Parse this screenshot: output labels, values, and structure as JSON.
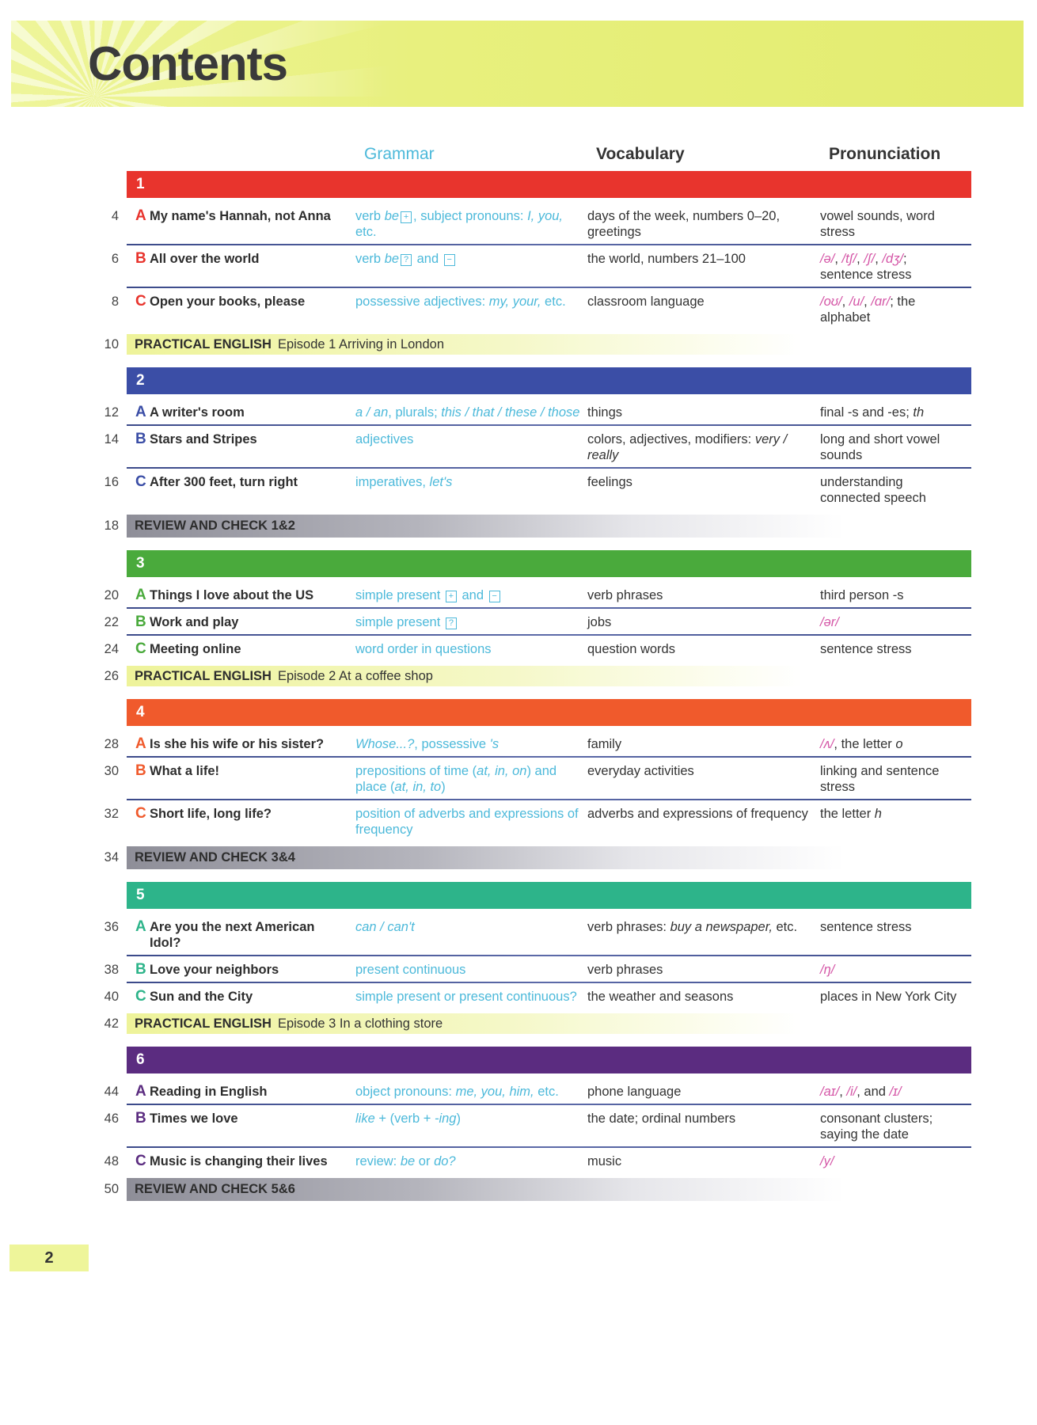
{
  "title": "Contents",
  "columns": {
    "grammar": "Grammar",
    "vocabulary": "Vocabulary",
    "pronunciation": "Pronunciation"
  },
  "colors": {
    "grammar": "#4cb9da",
    "phonetics": "#d455a6",
    "banner": "#e8f07e"
  },
  "sections": [
    {
      "type": "unit",
      "number": "1",
      "color": "#e8342d",
      "lessons": [
        {
          "page": "4",
          "letter": "A",
          "title": "My name's Hannah, not Anna",
          "grammar": [
            "verb ",
            {
              "i": "be"
            },
            {
              "box": "+"
            },
            ", subject pronouns: ",
            {
              "i": "I, you,"
            },
            " etc."
          ],
          "vocabulary": [
            "days of the week, numbers 0–20, greetings"
          ],
          "pronunciation": [
            "vowel sounds, word stress"
          ]
        },
        {
          "page": "6",
          "letter": "B",
          "title": "All over the world",
          "grammar": [
            "verb ",
            {
              "i": "be"
            },
            {
              "box": "?"
            },
            " and ",
            {
              "box": "−"
            }
          ],
          "vocabulary": [
            "the world, numbers 21–100"
          ],
          "pronunciation": [
            {
              "ipa": "/ə/"
            },
            ", ",
            {
              "ipa": "/tʃ/"
            },
            ", ",
            {
              "ipa": "/ʃ/"
            },
            ", ",
            {
              "ipa": "/dʒ/"
            },
            "; sentence stress"
          ]
        },
        {
          "page": "8",
          "letter": "C",
          "title": "Open your books, please",
          "grammar": [
            "possessive adjectives: ",
            {
              "i": "my, your,"
            },
            " etc."
          ],
          "vocabulary": [
            "classroom language"
          ],
          "pronunciation": [
            {
              "ipa": "/oʊ/"
            },
            ", ",
            {
              "ipa": "/u/"
            },
            ", ",
            {
              "ipa": "/ɑr/"
            },
            "; the alphabet"
          ]
        }
      ]
    },
    {
      "type": "practical",
      "page": "10",
      "label": "PRACTICAL ENGLISH",
      "episode": "Episode 1  Arriving in London"
    },
    {
      "type": "unit",
      "number": "2",
      "color": "#3b4ea6",
      "lessons": [
        {
          "page": "12",
          "letter": "A",
          "title": "A writer's room",
          "grammar": [
            {
              "i": "a / an"
            },
            ", plurals; ",
            {
              "i": "this / that / these / those"
            }
          ],
          "vocabulary": [
            "things"
          ],
          "pronunciation": [
            "final -s and -es; ",
            {
              "i": "th"
            }
          ]
        },
        {
          "page": "14",
          "letter": "B",
          "title": "Stars and Stripes",
          "grammar": [
            "adjectives"
          ],
          "vocabulary": [
            "colors, adjectives, modifiers: ",
            {
              "i": "very / really"
            }
          ],
          "pronunciation": [
            "long and short vowel sounds"
          ]
        },
        {
          "page": "16",
          "letter": "C",
          "title": "After 300 feet, turn right",
          "grammar": [
            "imperatives, ",
            {
              "i": "let's"
            }
          ],
          "vocabulary": [
            "feelings"
          ],
          "pronunciation": [
            "understanding connected speech"
          ]
        }
      ]
    },
    {
      "type": "review",
      "page": "18",
      "label": "REVIEW AND CHECK 1&2"
    },
    {
      "type": "unit",
      "number": "3",
      "color": "#4aaa3c",
      "lessons": [
        {
          "page": "20",
          "letter": "A",
          "title": "Things I love about the US",
          "grammar": [
            "simple present ",
            {
              "box": "+"
            },
            " and ",
            {
              "box": "−"
            }
          ],
          "vocabulary": [
            "verb phrases"
          ],
          "pronunciation": [
            "third person -s"
          ]
        },
        {
          "page": "22",
          "letter": "B",
          "title": "Work and play",
          "grammar": [
            "simple present ",
            {
              "box": "?"
            }
          ],
          "vocabulary": [
            "jobs"
          ],
          "pronunciation": [
            {
              "ipa": "/ər/"
            }
          ]
        },
        {
          "page": "24",
          "letter": "C",
          "title": "Meeting online",
          "grammar": [
            "word order in questions"
          ],
          "vocabulary": [
            "question words"
          ],
          "pronunciation": [
            "sentence stress"
          ]
        }
      ]
    },
    {
      "type": "practical",
      "page": "26",
      "label": "PRACTICAL ENGLISH",
      "episode": "Episode 2  At a coffee shop"
    },
    {
      "type": "unit",
      "number": "4",
      "color": "#f05a2c",
      "lessons": [
        {
          "page": "28",
          "letter": "A",
          "title": "Is she his wife or his sister?",
          "grammar": [
            {
              "i": "Whose...?"
            },
            ", possessive ",
            {
              "i": "'s"
            }
          ],
          "vocabulary": [
            "family"
          ],
          "pronunciation": [
            {
              "ipa": "/ʌ/"
            },
            ", the letter ",
            {
              "i": "o"
            }
          ]
        },
        {
          "page": "30",
          "letter": "B",
          "title": "What a life!",
          "grammar": [
            "prepositions of time (",
            {
              "i": "at, in, on"
            },
            ") and place (",
            {
              "i": "at, in, to"
            },
            ")"
          ],
          "vocabulary": [
            "everyday activities"
          ],
          "pronunciation": [
            "linking and sentence stress"
          ]
        },
        {
          "page": "32",
          "letter": "C",
          "title": "Short life, long life?",
          "grammar": [
            "position of adverbs and expressions of frequency"
          ],
          "vocabulary": [
            "adverbs and expressions of frequency"
          ],
          "pronunciation": [
            "the letter ",
            {
              "i": "h"
            }
          ]
        }
      ]
    },
    {
      "type": "review",
      "page": "34",
      "label": "REVIEW AND CHECK 3&4"
    },
    {
      "type": "unit",
      "number": "5",
      "color": "#2db48a",
      "lessons": [
        {
          "page": "36",
          "letter": "A",
          "title": "Are you the next American Idol?",
          "grammar": [
            {
              "i": "can / can't"
            }
          ],
          "vocabulary": [
            "verb phrases: ",
            {
              "i": "buy a newspaper,"
            },
            " etc."
          ],
          "pronunciation": [
            "sentence stress"
          ]
        },
        {
          "page": "38",
          "letter": "B",
          "title": "Love your neighbors",
          "grammar": [
            "present continuous"
          ],
          "vocabulary": [
            "verb phrases"
          ],
          "pronunciation": [
            {
              "ipa": "/ŋ/"
            }
          ]
        },
        {
          "page": "40",
          "letter": "C",
          "title": "Sun and the City",
          "grammar": [
            "simple present or present continuous?"
          ],
          "vocabulary": [
            "the weather and seasons"
          ],
          "pronunciation": [
            "places in New York City"
          ]
        }
      ]
    },
    {
      "type": "practical",
      "page": "42",
      "label": "PRACTICAL ENGLISH",
      "episode": "Episode 3  In a clothing store"
    },
    {
      "type": "unit",
      "number": "6",
      "color": "#5b2c80",
      "lessons": [
        {
          "page": "44",
          "letter": "A",
          "title": "Reading in English",
          "grammar": [
            "object pronouns: ",
            {
              "i": "me, you, him,"
            },
            " etc."
          ],
          "vocabulary": [
            "phone language"
          ],
          "pronunciation": [
            {
              "ipa": "/aɪ/"
            },
            ", ",
            {
              "ipa": "/i/"
            },
            ", and ",
            {
              "ipa": "/ɪ/"
            }
          ]
        },
        {
          "page": "46",
          "letter": "B",
          "title": "Times we love",
          "grammar": [
            {
              "i": "like"
            },
            " + (verb + ",
            {
              "i": "-ing"
            },
            ")"
          ],
          "vocabulary": [
            "the date; ordinal numbers"
          ],
          "pronunciation": [
            "consonant clusters; saying the date"
          ]
        },
        {
          "page": "48",
          "letter": "C",
          "title": "Music is changing their lives",
          "grammar": [
            "review: ",
            {
              "i": "be"
            },
            " or ",
            {
              "i": "do?"
            }
          ],
          "vocabulary": [
            "music"
          ],
          "pronunciation": [
            {
              "ipa": "/y/"
            }
          ]
        }
      ]
    },
    {
      "type": "review",
      "page": "50",
      "label": "REVIEW AND CHECK 5&6"
    }
  ],
  "page_number": "2"
}
